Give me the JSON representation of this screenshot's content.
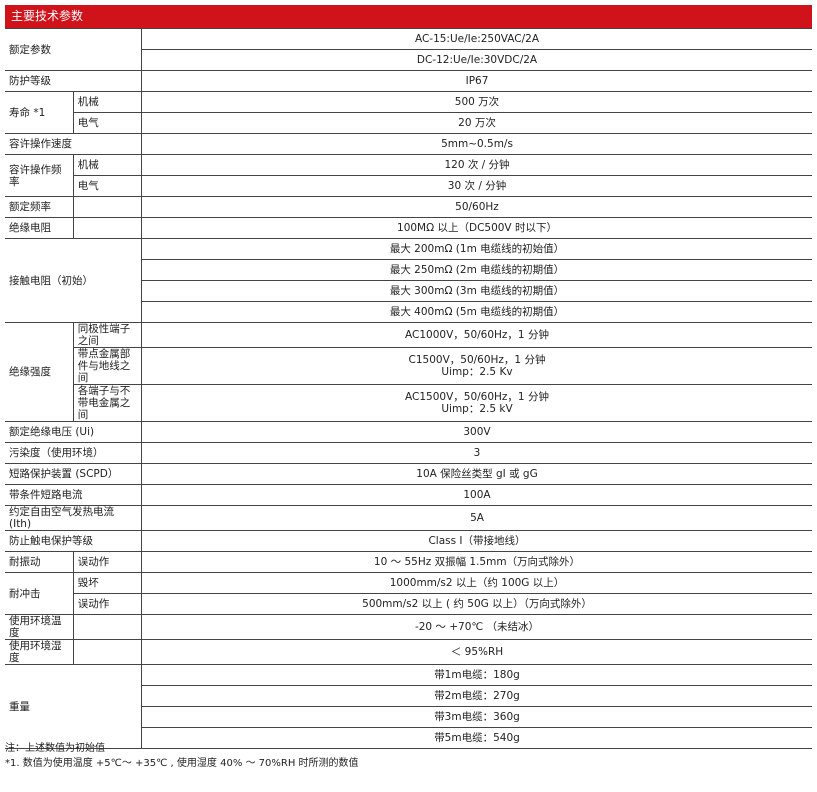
{
  "title": "主要技术参数",
  "rows": [
    {
      "label": "额定参数",
      "values": [
        "AC-15:Ue/Ie:250VAC/2A",
        "DC-12:Ue/Ie:30VDC/2A"
      ]
    },
    {
      "label": "防护等级",
      "value": "IP67"
    },
    {
      "label": "寿命 *1",
      "sub": [
        {
          "label": "机械",
          "value": "500 万次"
        },
        {
          "label": "电气",
          "value": "20 万次"
        }
      ]
    },
    {
      "label": "容许操作速度",
      "value": "5mm~0.5m/s"
    },
    {
      "label": "容许操作频率",
      "sub": [
        {
          "label": "机械",
          "value": "120 次 / 分钟"
        },
        {
          "label": "电气",
          "value": "30 次 / 分钟"
        }
      ]
    },
    {
      "label": "额定频率",
      "value": "50/60Hz"
    },
    {
      "label": "绝缘电阻",
      "value": "100MΩ 以上（DC500V 时以下）"
    },
    {
      "label": "接触电阻（初始）",
      "values": [
        "最大 200mΩ (1m 电缆线的初始值）",
        "最大 250mΩ (2m 电缆线的初期值）",
        "最大 300mΩ (3m 电缆线的初期值）",
        "最大 400mΩ (5m 电缆线的初期值）"
      ]
    },
    {
      "label": "绝缘强度",
      "sub": [
        {
          "label": "同极性端子之间",
          "value": "AC1000V，50/60Hz，1 分钟"
        },
        {
          "label": "带点金属部件与地线之间",
          "value": "C1500V，50/60Hz，1 分钟",
          "value2": "Uimp：2.5 Kv"
        },
        {
          "label": "各端子与不带电金属之间",
          "value": "AC1500V，50/60Hz，1 分钟",
          "value2": "Uimp：2.5 kV"
        }
      ]
    },
    {
      "label": "额定绝缘电压 (Ui)",
      "value": "300V"
    },
    {
      "label": "污染度（使用环境）",
      "value": "3"
    },
    {
      "label": "短路保护装置 (SCPD）",
      "value": "10A 保险丝类型 gI 或 gG"
    },
    {
      "label": "带条件短路电流",
      "value": "100A"
    },
    {
      "label": "约定自由空气发热电流 (Ith)",
      "value": "5A"
    },
    {
      "label": "防止触电保护等级",
      "value": "Class I（带接地线）"
    },
    {
      "label": "耐振动",
      "sub": [
        {
          "label": "误动作",
          "value": "10 ～ 55Hz 双振幅 1.5mm（万向式除外）"
        }
      ]
    },
    {
      "label": "耐冲击",
      "sub": [
        {
          "label": "毁坏",
          "value": "1000mm/s2 以上（约 100G 以上）"
        },
        {
          "label": "误动作",
          "value": "500mm/s2 以上 ( 约 50G 以上）（万向式除外）"
        }
      ]
    },
    {
      "label": "使用环境温度",
      "value": "-20 ～ +70℃ （未结冰）"
    },
    {
      "label": "使用环境湿度",
      "value": "＜ 95%RH"
    },
    {
      "label": "重量",
      "values": [
        "带1m电缆：180g",
        "带2m电缆：270g",
        "带3m电缆：360g",
        "带5m电缆：540g"
      ]
    }
  ],
  "notes": [
    "注：上述数值为初始值",
    "*1. 数值为使用温度 +5℃～ +35℃ , 使用湿度 40% ～ 70%RH 时所测的数值"
  ],
  "colors": {
    "header": "#d0121b"
  }
}
